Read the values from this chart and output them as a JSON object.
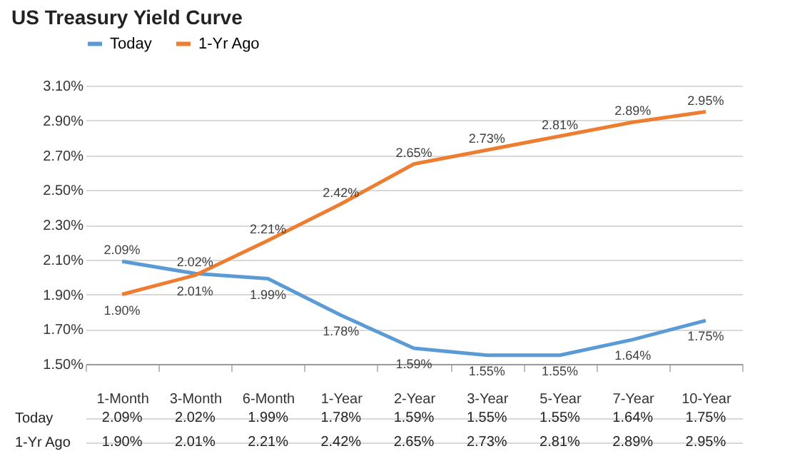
{
  "chart_data": {
    "type": "line",
    "title": "US Treasury Yield Curve",
    "categories": [
      "1-Month",
      "3-Month",
      "6-Month",
      "1-Year",
      "2-Year",
      "3-Year",
      "5-Year",
      "7-Year",
      "10-Year"
    ],
    "series": [
      {
        "name": "Today",
        "color": "#5b9bd5",
        "values": [
          2.09,
          2.02,
          1.99,
          1.78,
          1.59,
          1.55,
          1.55,
          1.64,
          1.75
        ],
        "value_labels": [
          "2.09%",
          "2.02%",
          "1.99%",
          "1.78%",
          "1.59%",
          "1.55%",
          "1.55%",
          "1.64%",
          "1.75%"
        ]
      },
      {
        "name": "1-Yr Ago",
        "color": "#ed7d31",
        "values": [
          1.9,
          2.01,
          2.21,
          2.42,
          2.65,
          2.73,
          2.81,
          2.89,
          2.95
        ],
        "value_labels": [
          "1.90%",
          "2.01%",
          "2.21%",
          "2.42%",
          "2.65%",
          "2.73%",
          "2.81%",
          "2.89%",
          "2.95%"
        ]
      }
    ],
    "ylim": [
      1.5,
      3.1
    ],
    "yticks": [
      {
        "value": 1.5,
        "label": "1.50%"
      },
      {
        "value": 1.7,
        "label": "1.70%"
      },
      {
        "value": 1.9,
        "label": "1.90%"
      },
      {
        "value": 2.1,
        "label": "2.10%"
      },
      {
        "value": 2.3,
        "label": "2.30%"
      },
      {
        "value": 2.5,
        "label": "2.50%"
      },
      {
        "value": 2.7,
        "label": "2.70%"
      },
      {
        "value": 2.9,
        "label": "2.90%"
      },
      {
        "value": 3.1,
        "label": "3.10%"
      }
    ],
    "grid": "y",
    "legend": "top",
    "data_labels": true,
    "marker": "none",
    "line_style": "solid"
  }
}
